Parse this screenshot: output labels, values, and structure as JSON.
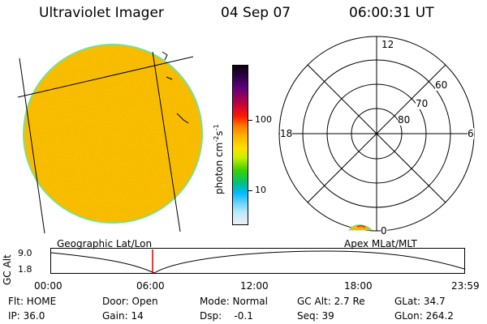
{
  "header": {
    "title": "Ultraviolet Imager",
    "date": "04 Sep 07",
    "time": "06:00:31 UT"
  },
  "image_panel": {
    "label": "Geographic Lat/Lon"
  },
  "polar_panel": {
    "label": "Apex MLat/MLT",
    "mlt_labels": [
      "12",
      "18",
      "6",
      "0"
    ],
    "lat_labels": [
      "60",
      "70",
      "80"
    ]
  },
  "colorbar": {
    "unit": "photon cm",
    "unit_exp1": "-2",
    "unit_mid": "s",
    "unit_exp2": "-1",
    "ticks": [
      "100",
      "10"
    ]
  },
  "altitude_plot": {
    "ylabel": "GC Alt",
    "y_ticks": [
      "9.0",
      "1.8"
    ],
    "x_ticks": [
      "00:00",
      "06:00",
      "12:00",
      "18:00",
      "23:59"
    ],
    "marker_time": "06:00"
  },
  "info": {
    "flt": "Flt: HOME",
    "door": "Door: Open",
    "mode": "Mode: Normal",
    "gc_alt": "GC Alt: 2.7 Re",
    "glat": "GLat: 34.7",
    "ip": "IP: 36.0",
    "gain": "Gain: 14",
    "dsp": "Dsp:    -0.1",
    "seq": "Seq: 39",
    "glon": "GLon: 264.2"
  },
  "colors": {
    "disk": "#f6b800",
    "disk_edge": "#7de08a",
    "marker": "#d40000"
  }
}
